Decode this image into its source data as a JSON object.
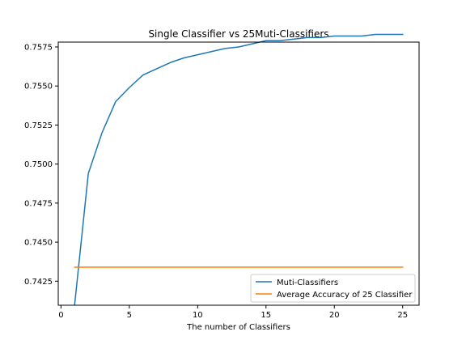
{
  "chart_data": {
    "type": "line",
    "title": "Single Classifier vs 25Muti-Classifiers",
    "xlabel": "The number of Classifiers",
    "ylabel": "",
    "xlim": [
      -0.2,
      26.2
    ],
    "ylim": [
      0.74096,
      0.75781
    ],
    "xticks": [
      0,
      5,
      10,
      15,
      20,
      25
    ],
    "xtick_labels": [
      "0",
      "5",
      "10",
      "15",
      "20",
      "25"
    ],
    "yticks": [
      0.7425,
      0.745,
      0.7475,
      0.75,
      0.7525,
      0.755,
      0.7575
    ],
    "ytick_labels": [
      "0.7425",
      "0.7450",
      "0.7475",
      "0.7500",
      "0.7525",
      "0.7550",
      "0.7575"
    ],
    "legend_position": "lower-right",
    "grid": false,
    "series": [
      {
        "name": "Muti-Classifiers",
        "color": "#1f77b4",
        "x": [
          1,
          2,
          3,
          4,
          5,
          6,
          7,
          8,
          9,
          10,
          11,
          12,
          13,
          14,
          15,
          16,
          17,
          18,
          19,
          20,
          21,
          22,
          23,
          24,
          25
        ],
        "y": [
          0.741,
          0.7494,
          0.752,
          0.754,
          0.7549,
          0.7557,
          0.7561,
          0.7565,
          0.7568,
          0.757,
          0.7572,
          0.7574,
          0.7575,
          0.7577,
          0.7579,
          0.7579,
          0.758,
          0.7581,
          0.7581,
          0.7582,
          0.7582,
          0.7582,
          0.7583,
          0.7583,
          0.7583
        ]
      },
      {
        "name": "Average Accuracy of 25 Classifier",
        "color": "#ff7f0e",
        "x": [
          1,
          25
        ],
        "y": [
          0.7434,
          0.7434
        ]
      }
    ]
  }
}
